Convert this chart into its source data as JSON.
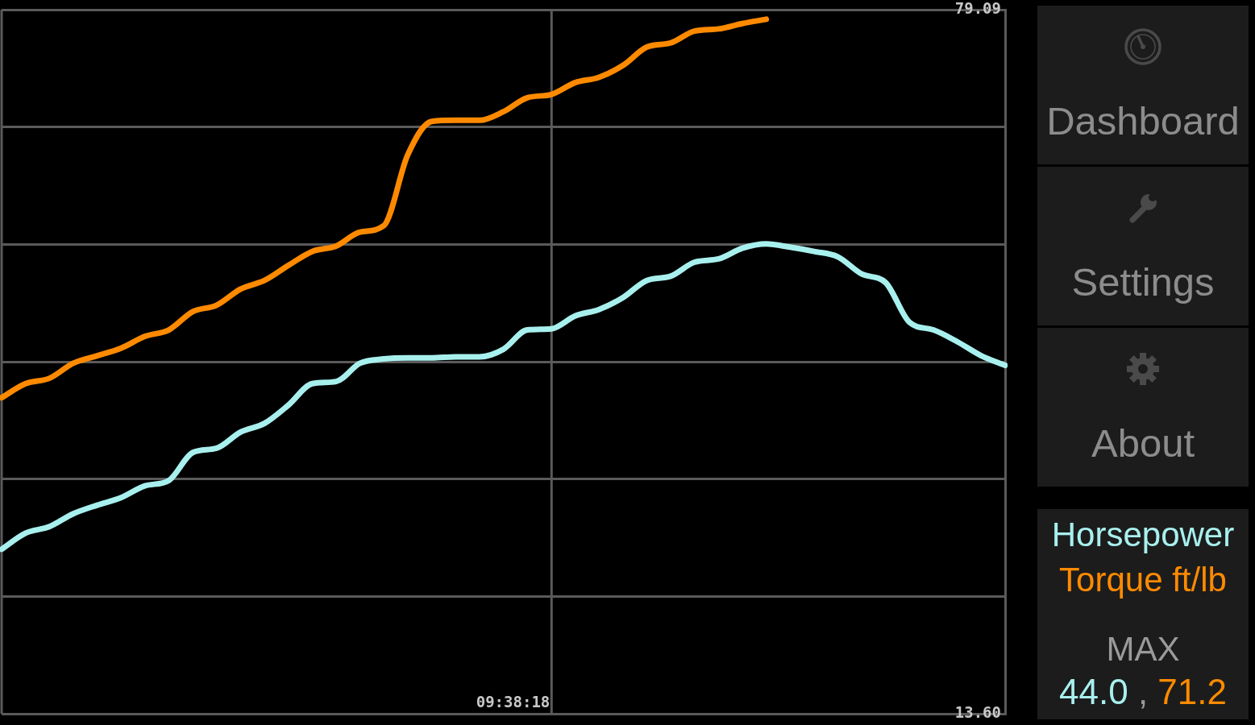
{
  "chart_data": {
    "type": "line",
    "categories": [
      null,
      null,
      null,
      null,
      null,
      null,
      null,
      null,
      null,
      null,
      null,
      null,
      null,
      null,
      null,
      null,
      null,
      null,
      null,
      null,
      null,
      null,
      null,
      null,
      null,
      null,
      null,
      null,
      null,
      null,
      null,
      null,
      null,
      null,
      null,
      null,
      null,
      null,
      null,
      null,
      null,
      null,
      null
    ],
    "series": [
      {
        "name": "Horsepower",
        "color": "#a8f0ee",
        "values": [
          28.9,
          30.4,
          31.0,
          32.2,
          33.0,
          33.7,
          34.8,
          35.3,
          37.9,
          38.3,
          39.8,
          40.6,
          42.3,
          44.3,
          44.5,
          46.2,
          46.6,
          46.7,
          46.7,
          46.8,
          46.8,
          47.5,
          49.3,
          49.4,
          50.6,
          51.2,
          52.3,
          53.9,
          54.3,
          55.6,
          55.9,
          56.9,
          57.3,
          57.0,
          56.6,
          56.1,
          54.5,
          53.7,
          50.0,
          49.3,
          48.2,
          46.9,
          46.0
        ]
      },
      {
        "name": "Torque ft/lb",
        "color": "#ff8a00",
        "values": [
          43.0,
          44.3,
          44.8,
          46.2,
          46.9,
          47.6,
          48.7,
          49.3,
          51.0,
          51.6,
          53.1,
          53.9,
          55.3,
          56.6,
          57.1,
          58.4,
          59.0,
          65.6,
          68.7,
          68.8,
          68.8,
          69.6,
          70.9,
          71.2,
          72.3,
          72.8,
          73.9,
          75.6,
          76.0,
          77.1,
          77.3,
          77.8,
          78.2,
          null,
          null,
          null,
          null,
          null,
          null,
          null,
          null,
          null,
          null
        ]
      }
    ],
    "ylim": [
      13.6,
      79.09
    ],
    "yticks": [
      {
        "value": 13.6,
        "label": "13.60"
      },
      {
        "value": 24.515,
        "label": null
      },
      {
        "value": 35.43,
        "label": null
      },
      {
        "value": 46.345,
        "label": null
      },
      {
        "value": 57.26,
        "label": null
      },
      {
        "value": 68.175,
        "label": null
      },
      79.09
    ],
    "grid": "y",
    "tick_labels": "y",
    "marker": "none",
    "legend": "right",
    "annotations": [
      "09:38:18",
      "Dashboard",
      "Settings",
      "About",
      "MAX",
      "44.0 , 71.2"
    ]
  }
}
